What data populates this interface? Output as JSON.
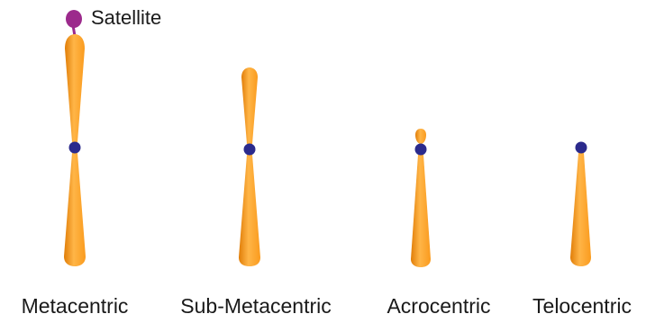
{
  "colors": {
    "arm_light": "#ffb547",
    "arm_mid": "#fa9b1e",
    "arm_dark": "#e07d08",
    "centromere": "#2b2a8c",
    "satellite": "#9c2a8c",
    "text": "#1a1a1a",
    "background": "#ffffff"
  },
  "annotations": {
    "satellite_label": "Satellite"
  },
  "chromosomes": [
    {
      "label": "Metacentric"
    },
    {
      "label": "Sub-Metacentric"
    },
    {
      "label": "Acrocentric"
    },
    {
      "label": "Telocentric"
    }
  ]
}
